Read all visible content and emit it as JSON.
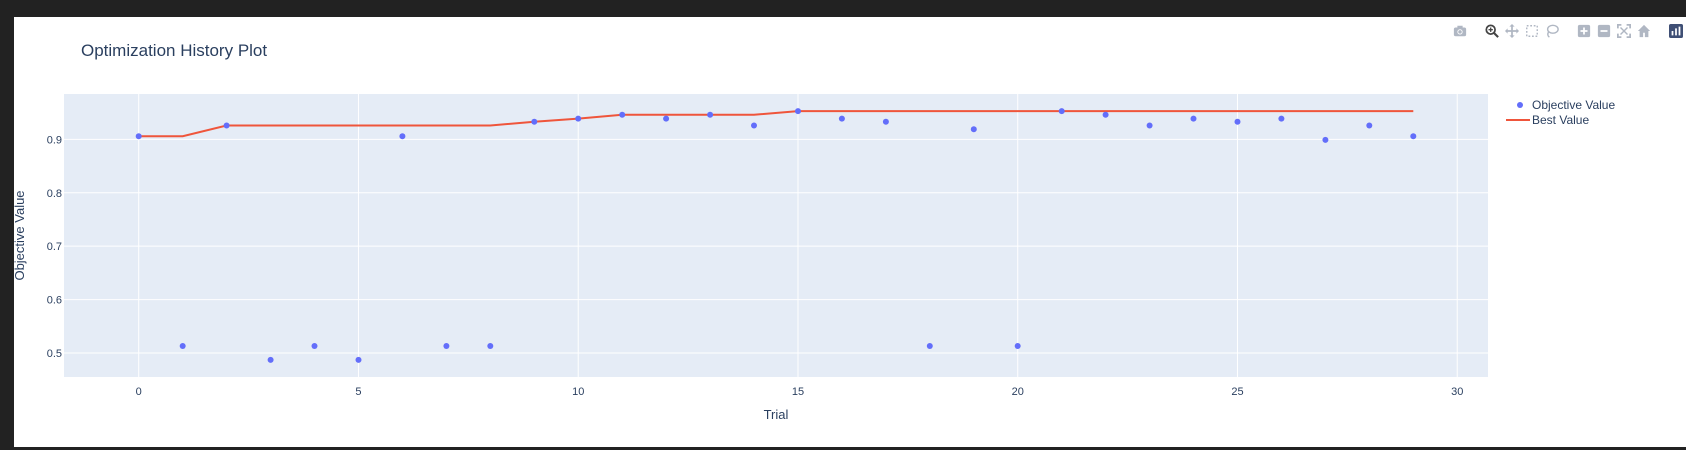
{
  "modebar": [
    {
      "name": "camera-icon",
      "label": "Download plot as a png"
    },
    {
      "name": "zoom-icon",
      "label": "Zoom"
    },
    {
      "name": "pan-icon",
      "label": "Pan"
    },
    {
      "name": "box-select-icon",
      "label": "Box Select"
    },
    {
      "name": "lasso-select-icon",
      "label": "Lasso Select"
    },
    {
      "name": "zoom-in-icon",
      "label": "Zoom in"
    },
    {
      "name": "zoom-out-icon",
      "label": "Zoom out"
    },
    {
      "name": "autoscale-icon",
      "label": "Autoscale"
    },
    {
      "name": "reset-axes-icon",
      "label": "Reset axes"
    },
    {
      "name": "plotly-logo-icon",
      "label": "Produced with Plotly"
    }
  ],
  "colors": {
    "plot_bg": "#e5ecf6",
    "grid": "#ffffff",
    "objective": "#636efa",
    "best": "#ef553b",
    "text": "#2a3f5f"
  },
  "chart_data": {
    "type": "scatter",
    "title": "Optimization History Plot",
    "xlabel": "Trial",
    "ylabel": "Objective Value",
    "xlim": [
      -1.7,
      30.7
    ],
    "ylim": [
      0.455,
      0.985
    ],
    "xticks": [
      0,
      5,
      10,
      15,
      20,
      25,
      30
    ],
    "yticks": [
      0.5,
      0.6,
      0.7,
      0.8,
      0.9
    ],
    "grid": true,
    "legend_position": "top-right",
    "series": [
      {
        "name": "Objective Value",
        "mode": "markers",
        "x": [
          0,
          1,
          2,
          3,
          4,
          5,
          6,
          7,
          8,
          9,
          10,
          11,
          12,
          13,
          14,
          15,
          16,
          17,
          18,
          19,
          20,
          21,
          22,
          23,
          24,
          25,
          26,
          27,
          28,
          29
        ],
        "y": [
          0.906,
          0.513,
          0.926,
          0.487,
          0.513,
          0.487,
          0.906,
          0.513,
          0.513,
          0.933,
          0.939,
          0.946,
          0.939,
          0.946,
          0.926,
          0.953,
          0.939,
          0.933,
          0.513,
          0.919,
          0.513,
          0.953,
          0.946,
          0.926,
          0.939,
          0.933,
          0.939,
          0.899,
          0.926,
          0.906
        ]
      },
      {
        "name": "Best Value",
        "mode": "lines",
        "x": [
          0,
          1,
          2,
          3,
          4,
          5,
          6,
          7,
          8,
          9,
          10,
          11,
          12,
          13,
          14,
          15,
          16,
          17,
          18,
          19,
          20,
          21,
          22,
          23,
          24,
          25,
          26,
          27,
          28,
          29
        ],
        "y": [
          0.906,
          0.906,
          0.926,
          0.926,
          0.926,
          0.926,
          0.926,
          0.926,
          0.926,
          0.933,
          0.939,
          0.946,
          0.946,
          0.946,
          0.946,
          0.953,
          0.953,
          0.953,
          0.953,
          0.953,
          0.953,
          0.953,
          0.953,
          0.953,
          0.953,
          0.953,
          0.953,
          0.953,
          0.953,
          0.953
        ]
      }
    ]
  }
}
